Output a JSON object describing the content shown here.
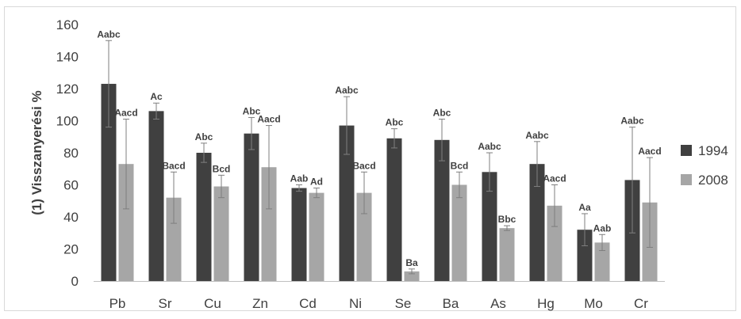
{
  "chart_data": {
    "type": "bar",
    "title": "",
    "xlabel": "",
    "ylabel": "(1) Visszanyerési %",
    "ylim": [
      0,
      160
    ],
    "yticks": [
      0,
      20,
      40,
      60,
      80,
      100,
      120,
      140,
      160
    ],
    "grid": false,
    "legend_position": "right",
    "categories": [
      "Pb",
      "Sr",
      "Cu",
      "Zn",
      "Cd",
      "Ni",
      "Se",
      "Ba",
      "As",
      "Hg",
      "Mo",
      "Cr"
    ],
    "series": [
      {
        "name": "1994",
        "color": "#404040",
        "values": [
          123,
          106,
          80,
          92,
          58,
          97,
          89,
          88,
          68,
          73,
          32,
          63
        ],
        "error": [
          27,
          5,
          6,
          10,
          2,
          18,
          6,
          13,
          12,
          14,
          10,
          33
        ],
        "letters": [
          "Aabc",
          "Ac",
          "Abc",
          "Abc",
          "Aab",
          "Aabc",
          "Abc",
          "Abc",
          "Aabc",
          "Aabc",
          "Aa",
          "Aabc"
        ]
      },
      {
        "name": "2008",
        "color": "#a6a6a6",
        "values": [
          73,
          52,
          59,
          71,
          55,
          55,
          6,
          60,
          33,
          47,
          24,
          49
        ],
        "error": [
          28,
          16,
          7,
          26,
          3,
          13,
          1.5,
          8,
          1.5,
          13,
          5,
          28
        ],
        "letters": [
          "Aacd",
          "Bacd",
          "Bcd",
          "Aacd",
          "Ad",
          "Bacd",
          "Ba",
          "Bcd",
          "Bbc",
          "Aacd",
          "Aab",
          "Aacd"
        ]
      }
    ]
  }
}
